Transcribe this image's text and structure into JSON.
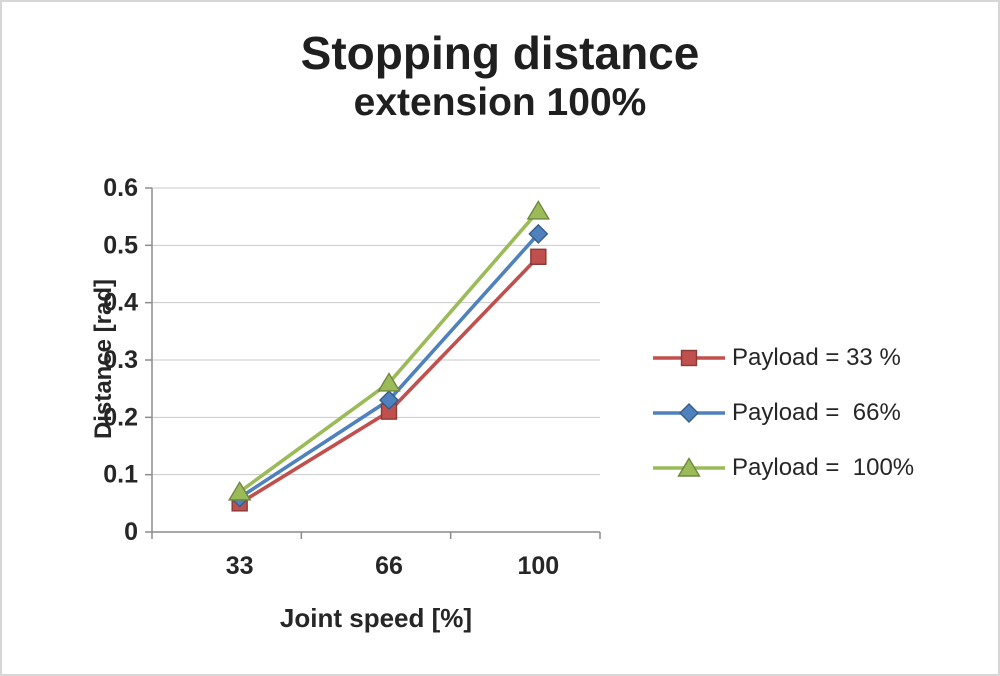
{
  "chart_data": {
    "type": "line",
    "title": "Stopping distance",
    "subtitle": "extension 100%",
    "xlabel": "Joint speed [%]",
    "ylabel": "Distance [rad]",
    "categories": [
      "33",
      "66",
      "100"
    ],
    "series": [
      {
        "name": "Payload = 33 %",
        "color": "#c0504d",
        "marker": "square",
        "values": [
          0.05,
          0.21,
          0.48
        ]
      },
      {
        "name": "Payload =  66%",
        "color": "#4f81bd",
        "marker": "diamond",
        "values": [
          0.06,
          0.23,
          0.52
        ]
      },
      {
        "name": "Payload =  100%",
        "color": "#9bbb59",
        "marker": "triangle",
        "values": [
          0.07,
          0.26,
          0.56
        ]
      }
    ],
    "ylim": [
      0,
      0.6
    ],
    "ytick_step": 0.1,
    "grid": true,
    "legend_position": "right"
  }
}
